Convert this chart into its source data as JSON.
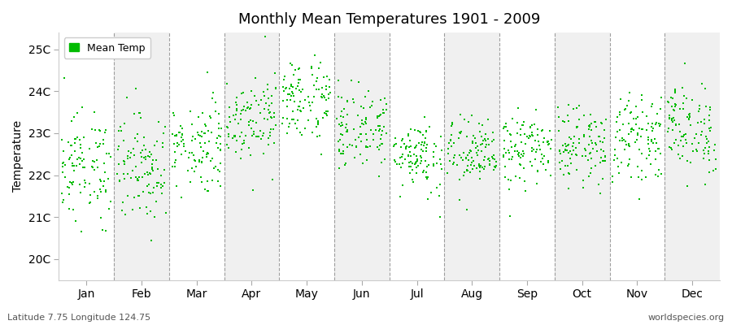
{
  "title": "Monthly Mean Temperatures 1901 - 2009",
  "ylabel": "Temperature",
  "xlabel_labels": [
    "Jan",
    "Feb",
    "Mar",
    "Apr",
    "May",
    "Jun",
    "Jul",
    "Aug",
    "Sep",
    "Oct",
    "Nov",
    "Dec"
  ],
  "ytick_labels": [
    "20C",
    "21C",
    "22C",
    "23C",
    "24C",
    "25C"
  ],
  "ytick_values": [
    20,
    21,
    22,
    23,
    24,
    25
  ],
  "ylim": [
    19.5,
    25.4
  ],
  "marker_color": "#00bb00",
  "plot_bg_color": "#f0f0f0",
  "alt_bg_color": "#ffffff",
  "legend_label": "Mean Temp",
  "footer_left": "Latitude 7.75 Longitude 124.75",
  "footer_right": "worldspecies.org",
  "years": 109,
  "monthly_means": [
    22.2,
    22.2,
    22.7,
    23.4,
    23.8,
    23.1,
    22.5,
    22.5,
    22.6,
    22.7,
    22.9,
    23.1
  ],
  "monthly_stds": [
    0.65,
    0.65,
    0.55,
    0.5,
    0.5,
    0.48,
    0.44,
    0.42,
    0.42,
    0.44,
    0.48,
    0.55
  ]
}
